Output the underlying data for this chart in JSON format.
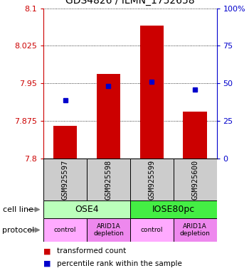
{
  "title": "GDS4826 / ILMN_1752658",
  "samples": [
    "GSM925597",
    "GSM925598",
    "GSM925599",
    "GSM925600"
  ],
  "bar_values": [
    7.865,
    7.968,
    8.065,
    7.893
  ],
  "bar_base": 7.8,
  "blue_values": [
    7.916,
    7.945,
    7.953,
    7.938
  ],
  "ylim": [
    7.8,
    8.1
  ],
  "yticks_left": [
    7.8,
    7.875,
    7.95,
    8.025,
    8.1
  ],
  "yticks_right": [
    0,
    25,
    50,
    75,
    100
  ],
  "yticks_right_labels": [
    "0",
    "25",
    "50",
    "75",
    "100%"
  ],
  "bar_color": "#cc0000",
  "blue_color": "#0000cc",
  "cell_lines": [
    {
      "label": "OSE4",
      "span": [
        0,
        2
      ],
      "color": "#bbffbb"
    },
    {
      "label": "IOSE80pc",
      "span": [
        2,
        4
      ],
      "color": "#44ee44"
    }
  ],
  "protocols": [
    {
      "label": "control",
      "span": [
        0,
        1
      ],
      "color": "#ffaaff"
    },
    {
      "label": "ARID1A\ndepletion",
      "span": [
        1,
        2
      ],
      "color": "#ee88ee"
    },
    {
      "label": "control",
      "span": [
        2,
        3
      ],
      "color": "#ffaaff"
    },
    {
      "label": "ARID1A\ndepletion",
      "span": [
        3,
        4
      ],
      "color": "#ee88ee"
    }
  ],
  "sample_box_color": "#cccccc",
  "legend_red_label": "transformed count",
  "legend_blue_label": "percentile rank within the sample",
  "cell_line_label": "cell line",
  "protocol_label": "protocol"
}
